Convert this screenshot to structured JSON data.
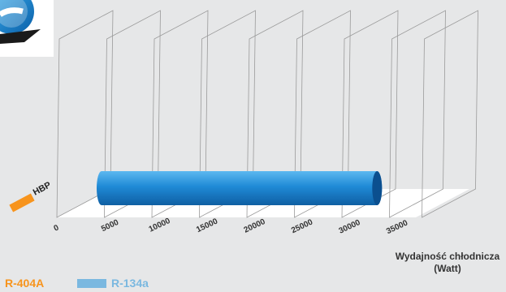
{
  "chart_data": {
    "type": "bar",
    "orientation": "horizontal",
    "style": "3d-cylinder",
    "categories": [
      "HBP"
    ],
    "category_marker_color": "#f7941d",
    "series": [
      {
        "name": "R-404A",
        "values": [
          null
        ],
        "color": "#f7941d"
      },
      {
        "name": "R-134a",
        "values": [
          29000
        ],
        "color": "#1c86cf"
      }
    ],
    "xticks": [
      0,
      5000,
      10000,
      15000,
      20000,
      25000,
      30000,
      35000
    ],
    "xlim": [
      0,
      35000
    ],
    "xlabel_line1": "Wydajność chłodnicza",
    "xlabel_line2": "(Watt)",
    "legend_position": "bottom-left",
    "grid": true
  },
  "legend_colors": {
    "r404a": "#f7941d",
    "r134a": "#7ab8e0"
  }
}
